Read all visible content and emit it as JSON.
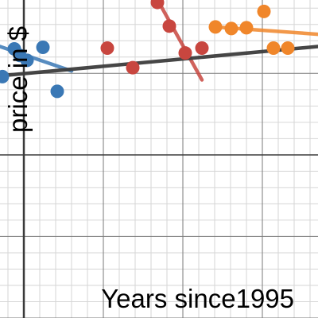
{
  "chart_data": {
    "type": "scatter",
    "xlabel": "Years since1995",
    "ylabel": "price in $",
    "xlim": [
      -0.3,
      3.7
    ],
    "ylim": [
      -2.0,
      1.9
    ],
    "grid": true,
    "minor_grid_step": 0.2,
    "major_grid_step": 1,
    "series": [
      {
        "color": "#3a78b5",
        "points": [
          [
            -0.27,
            0.96
          ],
          [
            -0.12,
            1.3
          ],
          [
            -0.05,
            1.22
          ],
          [
            0.04,
            1.16
          ],
          [
            0.24,
            1.32
          ],
          [
            0.42,
            0.78
          ]
        ],
        "trendline": [
          [
            -0.3,
            1.33
          ],
          [
            0.6,
            1.03
          ]
        ]
      },
      {
        "color": "#c8463f",
        "points": [
          [
            1.05,
            1.31
          ],
          [
            1.37,
            1.07
          ],
          [
            1.68,
            1.87
          ],
          [
            1.83,
            1.58
          ],
          [
            2.03,
            1.25
          ],
          [
            2.24,
            1.31
          ]
        ],
        "trendline": [
          [
            1.66,
            1.94
          ],
          [
            2.24,
            0.92
          ]
        ]
      },
      {
        "color": "#f0862a",
        "points": [
          [
            2.41,
            1.57
          ],
          [
            2.61,
            1.55
          ],
          [
            2.8,
            1.56
          ],
          [
            3.02,
            1.76
          ],
          [
            3.14,
            1.31
          ],
          [
            3.32,
            1.31
          ]
        ],
        "trendline": [
          [
            2.4,
            1.57
          ],
          [
            3.7,
            1.48
          ]
        ]
      },
      {
        "color": "#3c3c3c",
        "points": [],
        "trendline": [
          [
            -0.3,
            0.97
          ],
          [
            3.7,
            1.33
          ]
        ]
      }
    ]
  }
}
